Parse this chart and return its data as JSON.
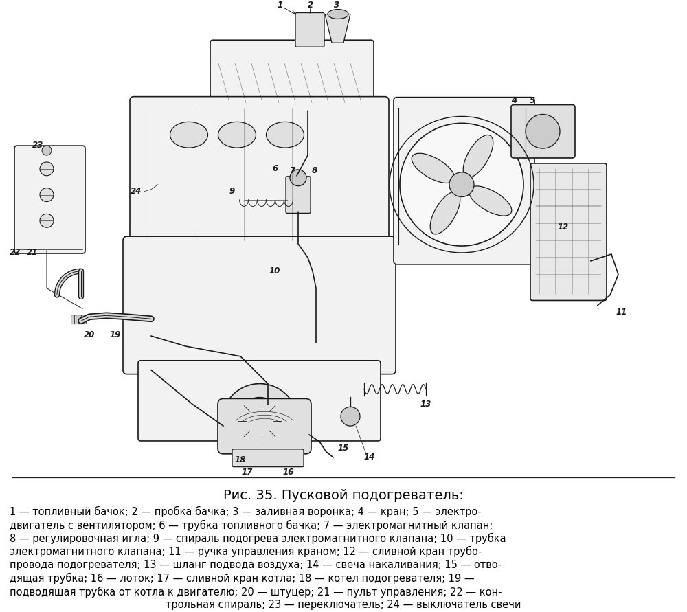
{
  "title": "Рис. 35. Пусковой подогреватель:",
  "title_fontsize": 14,
  "caption_lines": [
    "1 — топливный бачок; 2 — пробка бачка; 3 — заливная воронка; 4 — кран; 5 — электро-",
    "двигатель с вентилятором; 6 — трубка топливного бачка; 7 — электромагнитный клапан;",
    "8 — регулировочная игла; 9 — спираль подогрева электромагнитного клапана; 10 — трубка",
    "электромагнитного клапана; 11 — ручка управления краном; 12 — сливной кран трубо-",
    "провода подогревателя; 13 — шланг подвода воздуха; 14 — свеча накаливания; 15 — отво-",
    "дящая трубка; 16 — лоток; 17 — сливной кран котла; 18 — котел подогревателя; 19 —",
    "подводящая трубка от котла к двигателю; 20 — штуцер; 21 — пульт управления; 22 — кон-",
    "трольная спираль; 23 — переключатель; 24 — выключатель свечи"
  ],
  "last_line_center": "трольная спираль; 23 — переключатель; 24 — выключатель свечи",
  "caption_fontsize": 10.5,
  "background_color": "#ffffff",
  "text_color": "#000000",
  "fig_width": 10.0,
  "fig_height": 8.91,
  "lw": 0.9,
  "lw2": 1.2,
  "draw_color": "#1a1a1a",
  "fill_light": "#f2f2f2",
  "fill_mid": "#e0e0e0",
  "fill_dark": "#cccccc"
}
